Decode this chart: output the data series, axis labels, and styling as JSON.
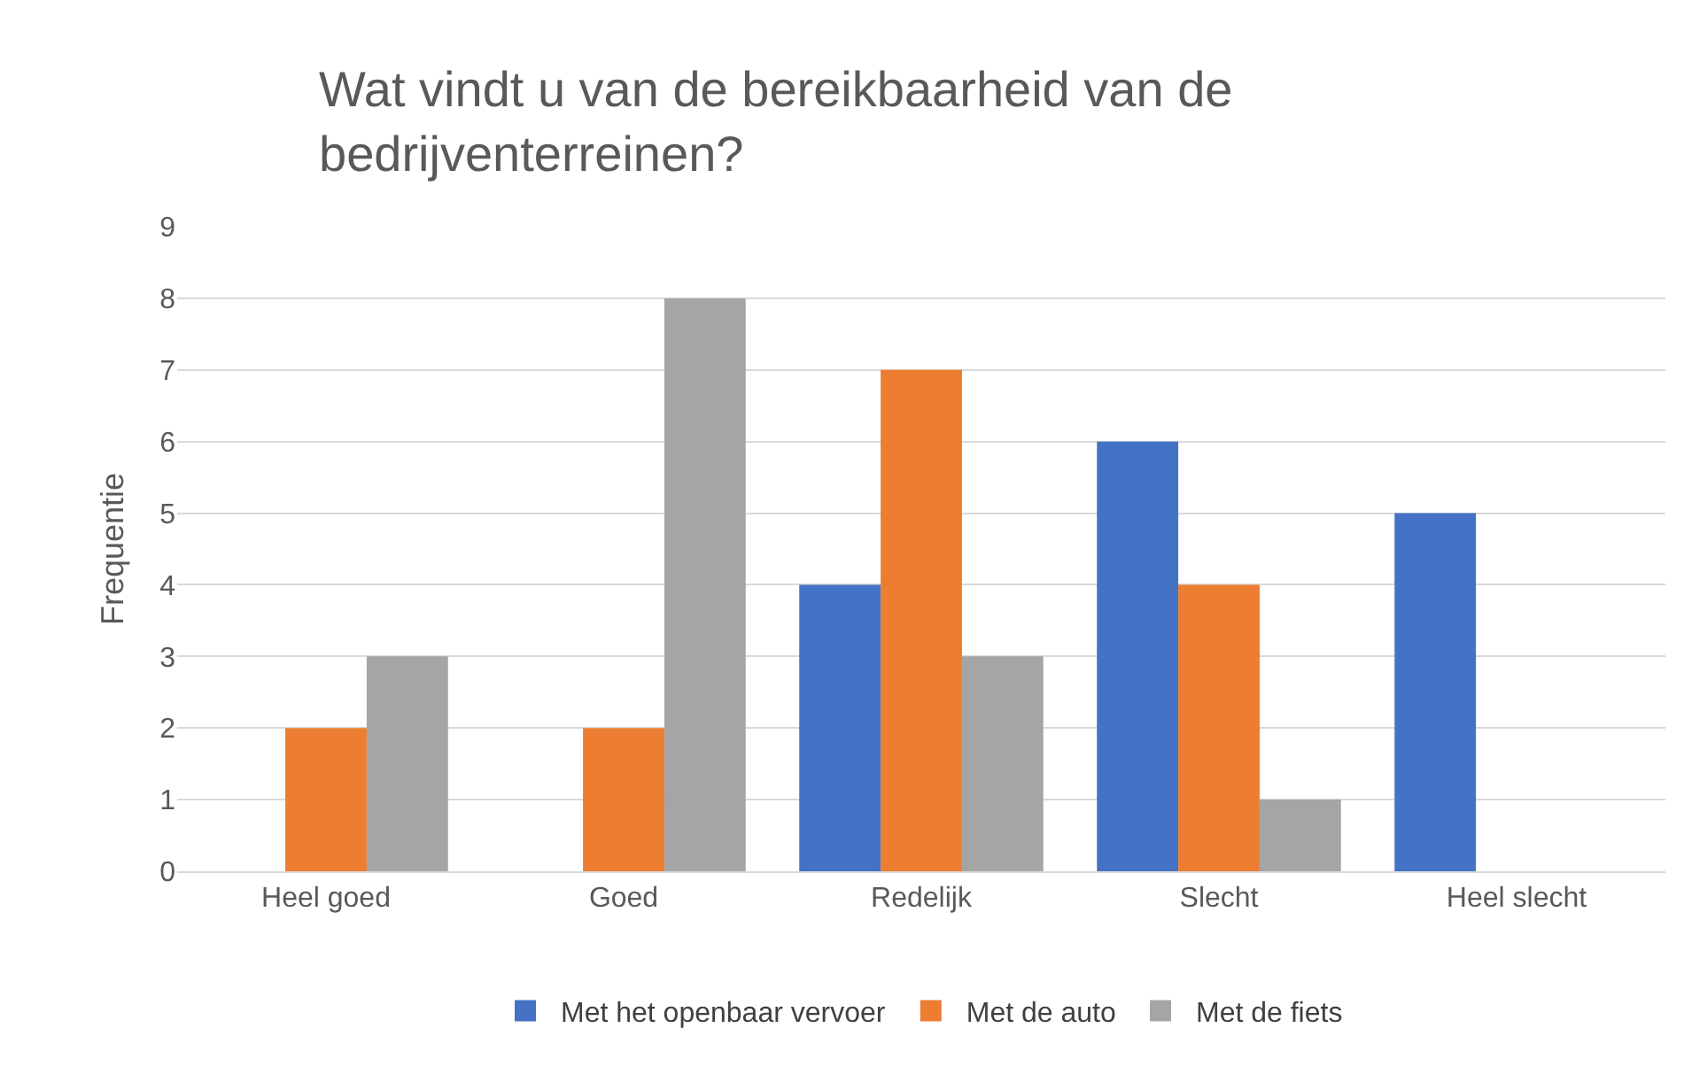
{
  "chart_data": {
    "type": "bar",
    "title": "Wat vindt u van de bereikbaarheid van de bedrijventerreinen?",
    "ylabel": "Frequentie",
    "categories": [
      "Heel goed",
      "Goed",
      "Redelijk",
      "Slecht",
      "Heel slecht"
    ],
    "series": [
      {
        "name": "Met het openbaar vervoer",
        "color": "#4472c4",
        "values": [
          null,
          null,
          4,
          6,
          5
        ]
      },
      {
        "name": "Met de auto",
        "color": "#ed7d31",
        "values": [
          2,
          2,
          7,
          4,
          null
        ]
      },
      {
        "name": "Met de fiets",
        "color": "#a5a5a5",
        "values": [
          3,
          8,
          3,
          1,
          null
        ]
      }
    ],
    "ylim": [
      0,
      9
    ],
    "yticks": [
      0,
      1,
      2,
      3,
      4,
      5,
      6,
      7,
      8,
      9
    ],
    "grid": "y",
    "legend": "bottom"
  }
}
